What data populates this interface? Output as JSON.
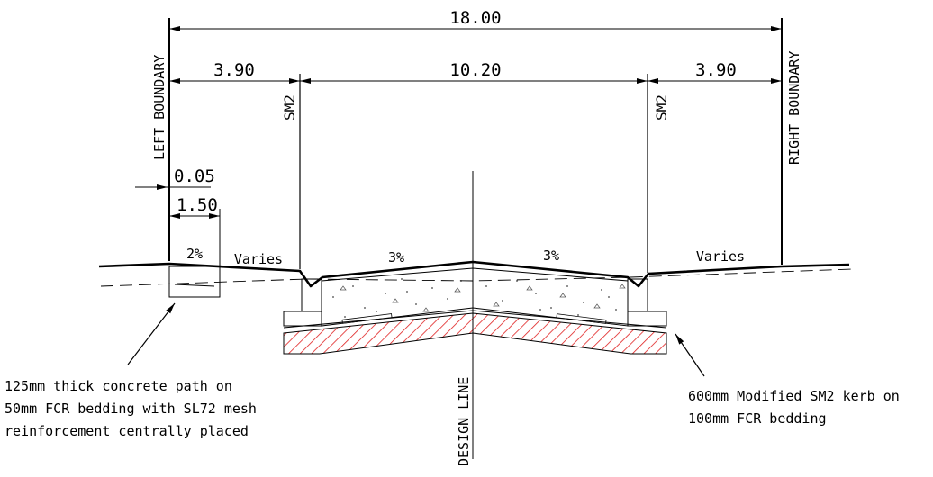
{
  "dimensions": {
    "total_width": "18.00",
    "left_verge": "3.90",
    "carriageway": "10.20",
    "right_verge": "3.90",
    "path_offset": "0.05",
    "path_width": "1.50"
  },
  "labels": {
    "left_boundary": "LEFT BOUNDARY",
    "right_boundary": "RIGHT BOUNDARY",
    "kerb_left": "SM2",
    "kerb_right": "SM2",
    "design_line": "DESIGN LINE"
  },
  "slopes": {
    "path": "2%",
    "left_verge": "Varies",
    "left_lane": "3%",
    "right_lane": "3%",
    "right_verge": "Varies"
  },
  "notes": {
    "path": [
      "125mm thick concrete path on",
      "50mm FCR bedding with SL72 mesh",
      "reinforcement centrally placed"
    ],
    "kerb": [
      "600mm Modified SM2 kerb on",
      "100mm FCR bedding"
    ]
  },
  "colors": {
    "line": "#000000",
    "subgrade_hatch": "#e02020"
  }
}
